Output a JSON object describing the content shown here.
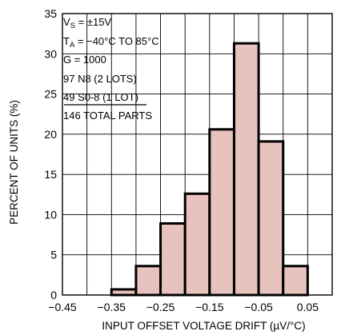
{
  "chart_data": {
    "type": "bar",
    "x_tick_labels": [
      "−0.45",
      "−0.35",
      "−0.25",
      "−0.15",
      "−0.05",
      "0.05"
    ],
    "x_ticks": [
      -0.45,
      -0.35,
      -0.25,
      -0.15,
      -0.05,
      0.05
    ],
    "xlim": [
      -0.45,
      0.1
    ],
    "ylim": [
      0,
      35
    ],
    "y_ticks": [
      0,
      5,
      10,
      15,
      20,
      25,
      30,
      35
    ],
    "xlabel": "INPUT OFFSET VOLTAGE DRIFT (µV/°C)",
    "ylabel": "PERCENT OF UNITS (%)",
    "grid": true,
    "bins": [
      {
        "start": -0.35,
        "end": -0.3,
        "value": 0.7
      },
      {
        "start": -0.3,
        "end": -0.25,
        "value": 3.6
      },
      {
        "start": -0.25,
        "end": -0.2,
        "value": 8.9
      },
      {
        "start": -0.2,
        "end": -0.15,
        "value": 12.6
      },
      {
        "start": -0.15,
        "end": -0.1,
        "value": 20.6
      },
      {
        "start": -0.1,
        "end": -0.05,
        "value": 31.3
      },
      {
        "start": -0.05,
        "end": 0.0,
        "value": 19.1
      },
      {
        "start": 0.0,
        "end": 0.05,
        "value": 3.6
      }
    ],
    "annotations": {
      "vs_main": "V",
      "vs_sub": "S",
      "vs_rest": " = ±15V",
      "ta_main": "T",
      "ta_sub": "A",
      "ta_rest": " = −40°C TO 85°C",
      "gain": "G = 1000",
      "lot1": " 97 N8 (2 LOTS)",
      "lot2": " 49 S0-8 (1 LOT)",
      "total": "146 TOTAL PARTS"
    }
  }
}
